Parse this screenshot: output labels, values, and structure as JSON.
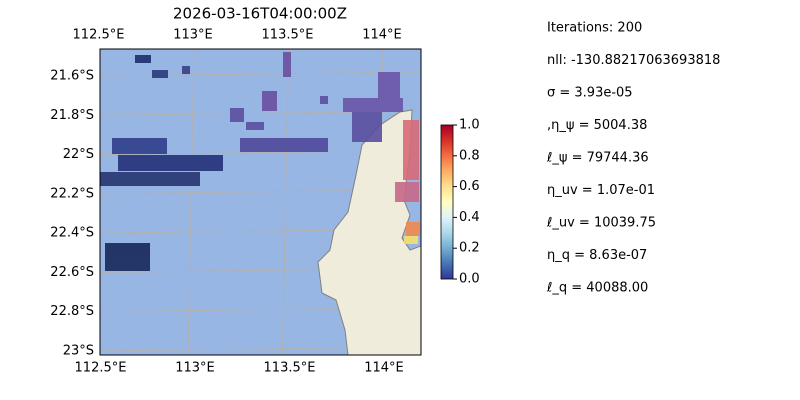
{
  "title": "2026-03-16T04:00:00Z",
  "map": {
    "lon_ticks": [
      {
        "value": 112.5,
        "label": "112.5°E"
      },
      {
        "value": 113,
        "label": "113°E"
      },
      {
        "value": 113.5,
        "label": "113.5°E"
      },
      {
        "value": 114,
        "label": "114°E"
      }
    ],
    "lat_ticks": [
      {
        "value": 21.6,
        "label": "21.6°S"
      },
      {
        "value": 21.8,
        "label": "21.8°S"
      },
      {
        "value": 22,
        "label": "22°S"
      },
      {
        "value": 22.2,
        "label": "22.2°S"
      },
      {
        "value": 22.4,
        "label": "22.4°S"
      },
      {
        "value": 22.6,
        "label": "22.6°S"
      },
      {
        "value": 22.8,
        "label": "22.8°S"
      },
      {
        "value": 23,
        "label": "23°S"
      }
    ]
  },
  "colorbar": {
    "ticks": [
      {
        "value": 0,
        "label": "0.0"
      },
      {
        "value": 0.2,
        "label": "0.2"
      },
      {
        "value": 0.4,
        "label": "0.4"
      },
      {
        "value": 0.6,
        "label": "0.6"
      },
      {
        "value": 0.8,
        "label": "0.8"
      },
      {
        "value": 1,
        "label": "1.0"
      }
    ]
  },
  "stats": [
    "Iterations: 200",
    "nll: -130.88217063693818",
    "σ = 3.93e-05",
    ",η_ψ = 5004.38",
    "ℓ_ψ = 79744.36",
    "η_uv = 1.07e-01",
    "ℓ_uv = 10039.75",
    "η_q = 8.63e-07",
    "ℓ_q = 40088.00"
  ]
}
